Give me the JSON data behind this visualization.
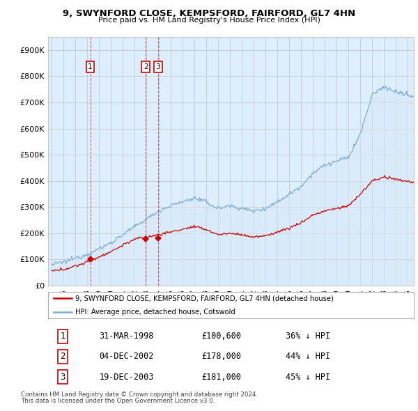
{
  "title_line1": "9, SWYNFORD CLOSE, KEMPSFORD, FAIRFORD, GL7 4HN",
  "title_line2": "Price paid vs. HM Land Registry's House Price Index (HPI)",
  "legend_label_red": "9, SWYNFORD CLOSE, KEMPSFORD, FAIRFORD, GL7 4HN (detached house)",
  "legend_label_blue": "HPI: Average price, detached house, Cotswold",
  "footer_line1": "Contains HM Land Registry data © Crown copyright and database right 2024.",
  "footer_line2": "This data is licensed under the Open Government Licence v3.0.",
  "transactions": [
    {
      "num": 1,
      "date": "31-MAR-1998",
      "price": "£100,600",
      "pct": "36% ↓ HPI",
      "year": 1998.25,
      "price_val": 100600
    },
    {
      "num": 2,
      "date": "04-DEC-2002",
      "price": "£178,000",
      "pct": "44% ↓ HPI",
      "year": 2002.92,
      "price_val": 178000
    },
    {
      "num": 3,
      "date": "19-DEC-2003",
      "price": "£181,000",
      "pct": "45% ↓ HPI",
      "year": 2003.96,
      "price_val": 181000
    }
  ],
  "red_color": "#cc0000",
  "blue_color": "#7aaed6",
  "blue_fill": "#d6e8f7",
  "grid_color": "#c8c8c8",
  "bg_color": "#ffffff",
  "plot_bg": "#ddeeff",
  "ylim": [
    0,
    950000
  ],
  "yticks": [
    0,
    100000,
    200000,
    300000,
    400000,
    500000,
    600000,
    700000,
    800000,
    900000
  ],
  "xlim_start": 1994.7,
  "xlim_end": 2025.5,
  "xticks": [
    1995,
    1996,
    1997,
    1998,
    1999,
    2000,
    2001,
    2002,
    2003,
    2004,
    2005,
    2006,
    2007,
    2008,
    2009,
    2010,
    2011,
    2012,
    2013,
    2014,
    2015,
    2016,
    2017,
    2018,
    2019,
    2020,
    2021,
    2022,
    2023,
    2024,
    2025
  ]
}
